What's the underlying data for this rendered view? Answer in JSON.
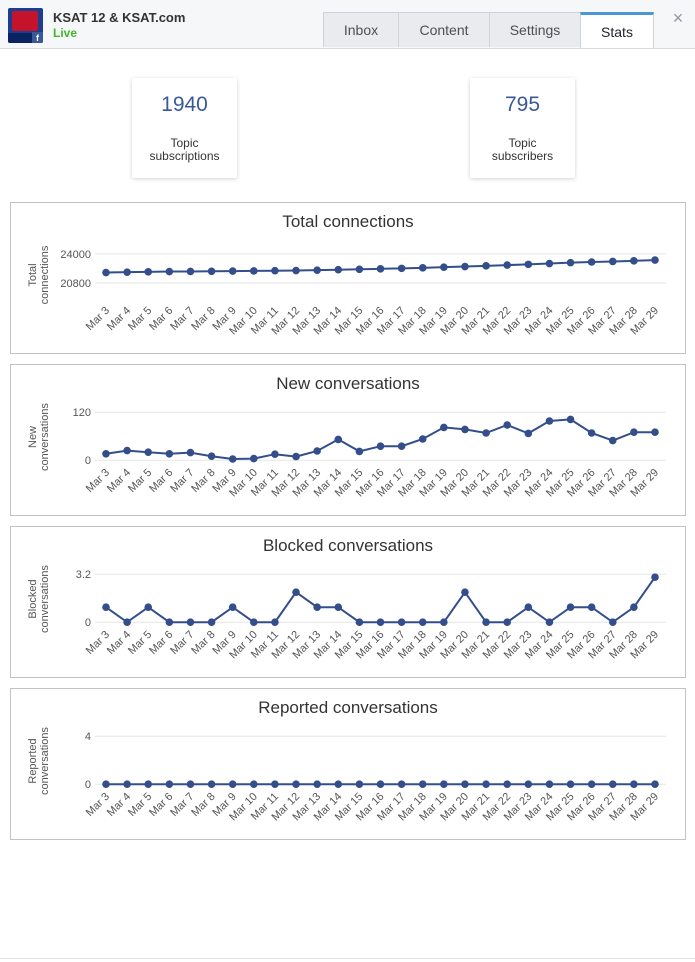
{
  "header": {
    "page_name": "KSAT 12 & KSAT.com",
    "status": "Live",
    "tabs": [
      {
        "label": "Inbox",
        "active": false
      },
      {
        "label": "Content",
        "active": false
      },
      {
        "label": "Settings",
        "active": false
      },
      {
        "label": "Stats",
        "active": true
      }
    ],
    "close_symbol": "×"
  },
  "colors": {
    "accent": "#3a5a96",
    "series": "#344e8c",
    "tab_active_border": "#4b97d6",
    "live": "#42b72a"
  },
  "stats": [
    {
      "value": "1940",
      "label": "Topic subscriptions"
    },
    {
      "value": "795",
      "label": "Topic subscribers"
    }
  ],
  "chart_data": [
    {
      "type": "line",
      "title": "Total connections",
      "ylabel": "Total connections",
      "yticks": [
        24000,
        20800
      ],
      "ylim": [
        18600,
        25200
      ],
      "grid": true,
      "categories": [
        "Mar 3",
        "Mar 4",
        "Mar 5",
        "Mar 6",
        "Mar 7",
        "Mar 8",
        "Mar 9",
        "Mar 10",
        "Mar 11",
        "Mar 12",
        "Mar 13",
        "Mar 14",
        "Mar 15",
        "Mar 16",
        "Mar 17",
        "Mar 18",
        "Mar 19",
        "Mar 20",
        "Mar 21",
        "Mar 22",
        "Mar 23",
        "Mar 24",
        "Mar 25",
        "Mar 26",
        "Mar 27",
        "Mar 28",
        "Mar 29"
      ],
      "values": [
        21950,
        21990,
        22030,
        22060,
        22070,
        22090,
        22110,
        22130,
        22150,
        22170,
        22210,
        22260,
        22310,
        22360,
        22410,
        22470,
        22540,
        22610,
        22690,
        22770,
        22850,
        22940,
        23040,
        23110,
        23170,
        23240,
        23320
      ]
    },
    {
      "type": "line",
      "title": "New conversations",
      "ylabel": "New conversations",
      "yticks": [
        120,
        0
      ],
      "ylim": [
        -12,
        138
      ],
      "grid": true,
      "categories": [
        "Mar 3",
        "Mar 4",
        "Mar 5",
        "Mar 6",
        "Mar 7",
        "Mar 8",
        "Mar 9",
        "Mar 10",
        "Mar 11",
        "Mar 12",
        "Mar 13",
        "Mar 14",
        "Mar 15",
        "Mar 16",
        "Mar 17",
        "Mar 18",
        "Mar 19",
        "Mar 20",
        "Mar 21",
        "Mar 22",
        "Mar 23",
        "Mar 24",
        "Mar 25",
        "Mar 26",
        "Mar 27",
        "Mar 28",
        "Mar 29"
      ],
      "values": [
        16,
        24,
        20,
        16,
        19,
        10,
        3,
        4,
        15,
        9,
        23,
        52,
        22,
        35,
        35,
        53,
        82,
        77,
        68,
        88,
        67,
        98,
        102,
        68,
        49,
        70,
        70
      ]
    },
    {
      "type": "line",
      "title": "Blocked conversations",
      "ylabel": "Blocked conversations",
      "yticks": [
        "3.2",
        "0"
      ],
      "ylim": [
        -0.32,
        3.68
      ],
      "grid": true,
      "categories": [
        "Mar 3",
        "Mar 4",
        "Mar 5",
        "Mar 6",
        "Mar 7",
        "Mar 8",
        "Mar 9",
        "Mar 10",
        "Mar 11",
        "Mar 12",
        "Mar 13",
        "Mar 14",
        "Mar 15",
        "Mar 16",
        "Mar 17",
        "Mar 18",
        "Mar 19",
        "Mar 20",
        "Mar 21",
        "Mar 22",
        "Mar 23",
        "Mar 24",
        "Mar 25",
        "Mar 26",
        "Mar 27",
        "Mar 28",
        "Mar 29"
      ],
      "values": [
        1,
        0,
        1,
        0,
        0,
        0,
        1,
        0,
        0,
        2,
        1,
        1,
        0,
        0,
        0,
        0,
        0,
        2,
        0,
        0,
        1,
        0,
        1,
        1,
        0,
        1,
        3
      ]
    },
    {
      "type": "line",
      "title": "Reported conversations",
      "ylabel": "Reported conversations",
      "yticks": [
        4,
        0
      ],
      "ylim": [
        -0.4,
        4.6
      ],
      "grid": true,
      "categories": [
        "Mar 3",
        "Mar 4",
        "Mar 5",
        "Mar 6",
        "Mar 7",
        "Mar 8",
        "Mar 9",
        "Mar 10",
        "Mar 11",
        "Mar 12",
        "Mar 13",
        "Mar 14",
        "Mar 15",
        "Mar 16",
        "Mar 17",
        "Mar 18",
        "Mar 19",
        "Mar 20",
        "Mar 21",
        "Mar 22",
        "Mar 23",
        "Mar 24",
        "Mar 25",
        "Mar 26",
        "Mar 27",
        "Mar 28",
        "Mar 29"
      ],
      "values": [
        0,
        0,
        0,
        0,
        0,
        0,
        0,
        0,
        0,
        0,
        0,
        0,
        0,
        0,
        0,
        0,
        0,
        0,
        0,
        0,
        0,
        0,
        0,
        0,
        0,
        0,
        0
      ]
    }
  ]
}
